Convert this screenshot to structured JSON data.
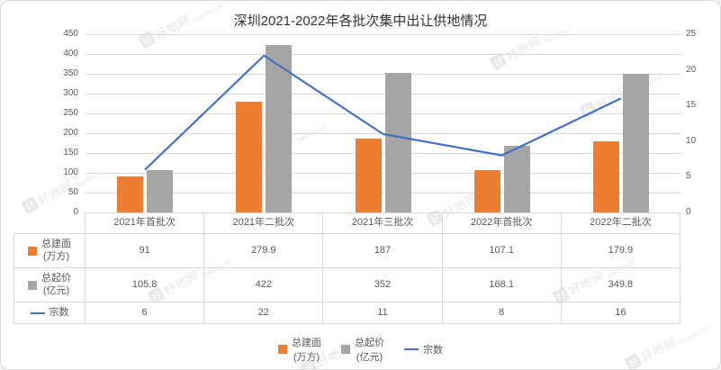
{
  "title": "深圳2021-2022年各批次集中出让供地情况",
  "watermark": {
    "logo": "好",
    "text": "好地网",
    "sub": "haodiw.cn"
  },
  "chart_data": {
    "type": "combo",
    "title": "深圳2021-2022年各批次集中出让供地情况",
    "categories": [
      "2021年首批次",
      "2021年二批次",
      "2021年三批次",
      "2022年首批次",
      "2022年二批次"
    ],
    "series": [
      {
        "name": "总建面",
        "unit": "(万方)",
        "type": "bar",
        "color": "#ED7D31",
        "axis": "left",
        "values": [
          91,
          279.9,
          187,
          107.1,
          179.9
        ]
      },
      {
        "name": "总起价",
        "unit": "(亿元)",
        "type": "bar",
        "color": "#A5A5A5",
        "axis": "left",
        "values": [
          105.8,
          422,
          352,
          168.1,
          349.8
        ]
      },
      {
        "name": "宗数",
        "unit": "",
        "type": "line",
        "color": "#4472C4",
        "axis": "right",
        "values": [
          6,
          22,
          11,
          8,
          16
        ]
      }
    ],
    "left_axis": {
      "min": 0,
      "max": 450,
      "step": 50
    },
    "right_axis": {
      "min": 0,
      "max": 25,
      "step": 5
    },
    "grid": true,
    "legend_position": "bottom",
    "data_table": true
  }
}
